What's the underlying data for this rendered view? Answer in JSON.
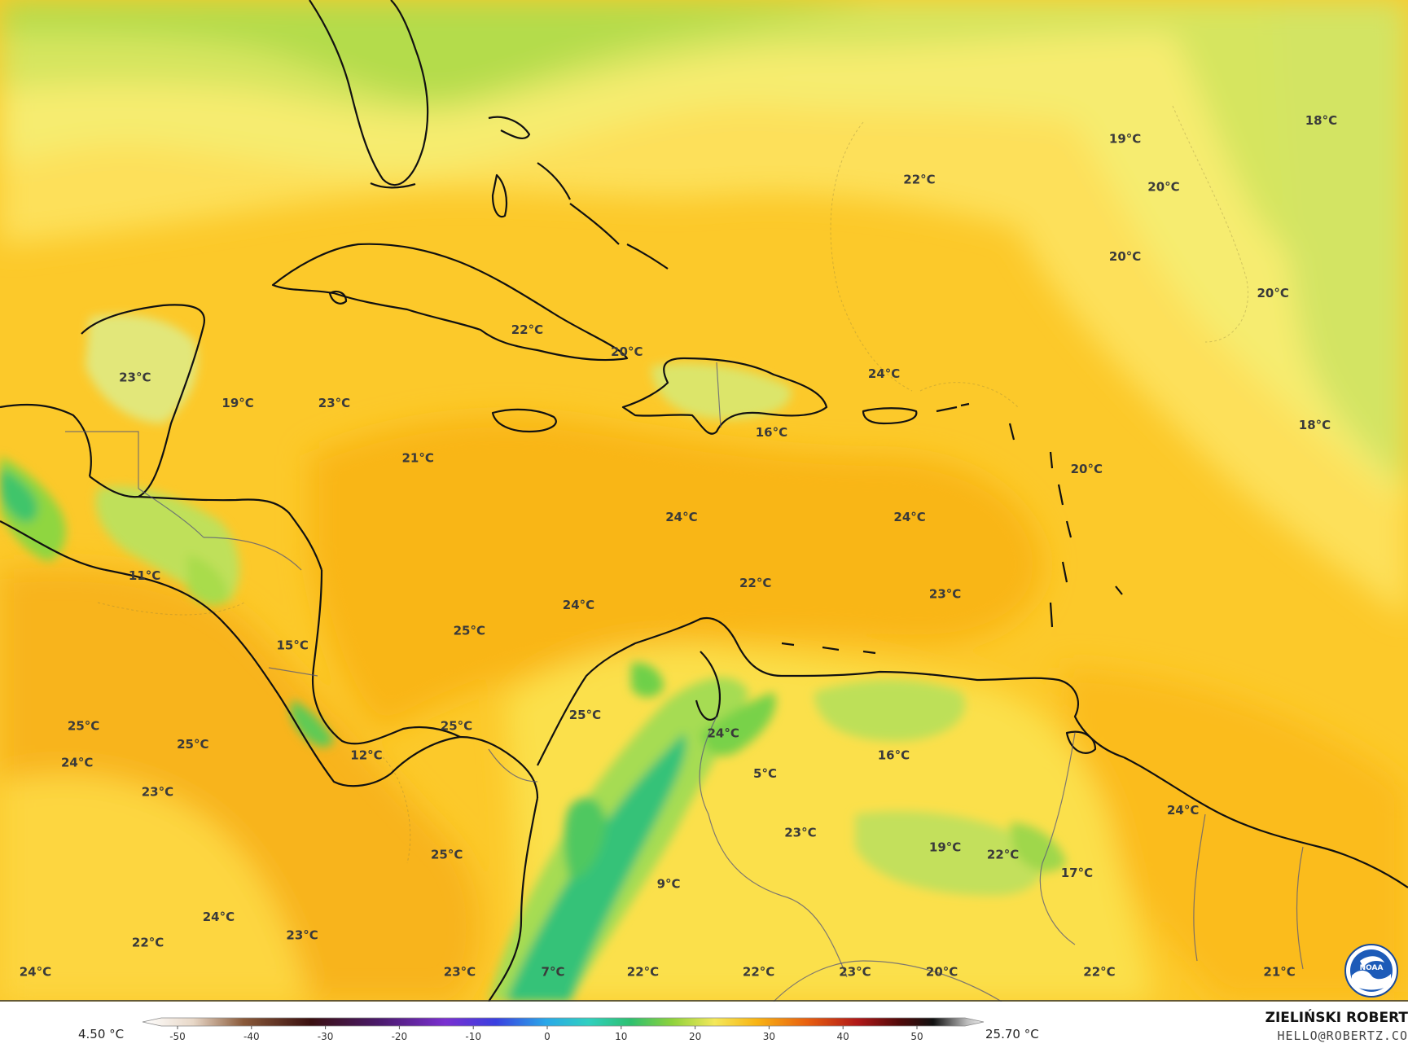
{
  "map": {
    "legend": {
      "min_label": "4.50 °C",
      "max_label": "25.70 °C",
      "ticks": [
        "-50",
        "-40",
        "-30",
        "-20",
        "-10",
        "0",
        "10",
        "20",
        "30",
        "40",
        "50"
      ]
    },
    "credit": {
      "name": "ZIELIŃSKI ROBERT",
      "email": "HELLO@ROBERTZ.CO"
    },
    "logo": {
      "icon": "noaa-logo-icon",
      "text": "NOAA"
    },
    "colors": {
      "ocean_warm": "#fbb712",
      "ocean_mild": "#fdd23e",
      "cool_yellow": "#f8e85c",
      "light_green": "#c8e15a",
      "green": "#8fd23c",
      "mountain": "#2fbd72",
      "coastline": "#111111",
      "border": "#55557a"
    },
    "labels": [
      {
        "text": "18°C",
        "lon": -58.7,
        "lat": 31.6
      },
      {
        "text": "19°C",
        "lon": -64.8,
        "lat": 31.1
      },
      {
        "text": "20°C",
        "lon": -63.6,
        "lat": 29.8
      },
      {
        "text": "20°C",
        "lon": -64.8,
        "lat": 27.9
      },
      {
        "text": "20°C",
        "lon": -60.2,
        "lat": 26.9
      },
      {
        "text": "22°C",
        "lon": -71.2,
        "lat": 30.0
      },
      {
        "text": "22°C",
        "lon": -83.4,
        "lat": 25.9
      },
      {
        "text": "20°C",
        "lon": -80.3,
        "lat": 25.3
      },
      {
        "text": "24°C",
        "lon": -72.3,
        "lat": 24.7
      },
      {
        "text": "23°C",
        "lon": -95.6,
        "lat": 24.6
      },
      {
        "text": "19°C",
        "lon": -92.4,
        "lat": 23.9
      },
      {
        "text": "23°C",
        "lon": -89.4,
        "lat": 23.9
      },
      {
        "text": "18°C",
        "lon": -58.9,
        "lat": 23.3
      },
      {
        "text": "16°C",
        "lon": -75.8,
        "lat": 23.1
      },
      {
        "text": "21°C",
        "lon": -86.8,
        "lat": 22.4
      },
      {
        "text": "20°C",
        "lon": -66.0,
        "lat": 22.1
      },
      {
        "text": "24°C",
        "lon": -78.6,
        "lat": 20.8
      },
      {
        "text": "24°C",
        "lon": -71.5,
        "lat": 20.8
      },
      {
        "text": "11°C",
        "lon": -95.3,
        "lat": 19.2
      },
      {
        "text": "22°C",
        "lon": -76.3,
        "lat": 19.0
      },
      {
        "text": "23°C",
        "lon": -70.4,
        "lat": 18.7
      },
      {
        "text": "24°C",
        "lon": -81.8,
        "lat": 18.4
      },
      {
        "text": "25°C",
        "lon": -85.2,
        "lat": 17.7
      },
      {
        "text": "15°C",
        "lon": -90.7,
        "lat": 17.3
      },
      {
        "text": "25°C",
        "lon": -81.6,
        "lat": 15.4
      },
      {
        "text": "25°C",
        "lon": -97.2,
        "lat": 15.1
      },
      {
        "text": "25°C",
        "lon": -85.6,
        "lat": 15.1
      },
      {
        "text": "24°C",
        "lon": -77.3,
        "lat": 14.9
      },
      {
        "text": "25°C",
        "lon": -93.8,
        "lat": 14.6
      },
      {
        "text": "12°C",
        "lon": -88.4,
        "lat": 14.3
      },
      {
        "text": "16°C",
        "lon": -72.0,
        "lat": 14.3
      },
      {
        "text": "24°C",
        "lon": -97.4,
        "lat": 14.1
      },
      {
        "text": "5°C",
        "lon": -76.0,
        "lat": 13.8
      },
      {
        "text": "23°C",
        "lon": -94.9,
        "lat": 13.3
      },
      {
        "text": "24°C",
        "lon": -63.0,
        "lat": 12.8
      },
      {
        "text": "23°C",
        "lon": -74.9,
        "lat": 12.2
      },
      {
        "text": "19°C",
        "lon": -70.4,
        "lat": 11.8
      },
      {
        "text": "22°C",
        "lon": -68.6,
        "lat": 11.6
      },
      {
        "text": "25°C",
        "lon": -85.9,
        "lat": 11.6
      },
      {
        "text": "17°C",
        "lon": -66.3,
        "lat": 11.1
      },
      {
        "text": "9°C",
        "lon": -79.0,
        "lat": 10.8
      },
      {
        "text": "24°C",
        "lon": -93.0,
        "lat": 9.9
      },
      {
        "text": "23°C",
        "lon": -90.4,
        "lat": 9.4
      },
      {
        "text": "22°C",
        "lon": -95.2,
        "lat": 9.2
      },
      {
        "text": "24°C",
        "lon": -98.7,
        "lat": 8.4
      },
      {
        "text": "23°C",
        "lon": -85.5,
        "lat": 8.4
      },
      {
        "text": "7°C",
        "lon": -82.6,
        "lat": 8.4
      },
      {
        "text": "22°C",
        "lon": -79.8,
        "lat": 8.4
      },
      {
        "text": "22°C",
        "lon": -76.2,
        "lat": 8.4
      },
      {
        "text": "23°C",
        "lon": -73.2,
        "lat": 8.4
      },
      {
        "text": "20°C",
        "lon": -70.5,
        "lat": 8.4
      },
      {
        "text": "22°C",
        "lon": -65.6,
        "lat": 8.4
      },
      {
        "text": "21°C",
        "lon": -60.0,
        "lat": 8.4
      }
    ]
  }
}
